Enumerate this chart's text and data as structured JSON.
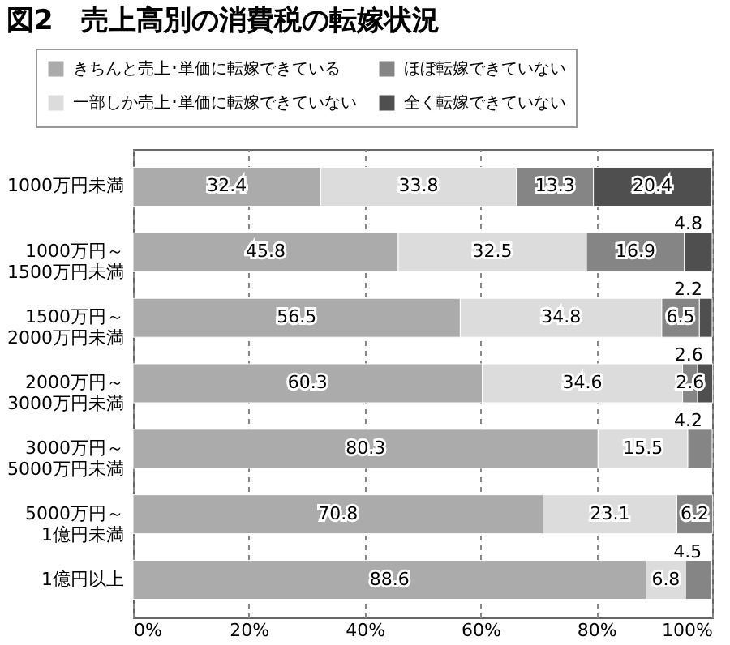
{
  "chart_data": {
    "type": "bar",
    "orientation": "horizontal",
    "stacked": true,
    "title": "図2　売上高別の消費税の転嫁状況",
    "categories": [
      "1000万円未満",
      "1000万円～1500万円未満",
      "1500万円～2000万円未満",
      "2000万円～3000万円未満",
      "3000万円～5000万円未満",
      "5000万円～1億円未満",
      "1億円以上"
    ],
    "series": [
      {
        "name": "きちんと売上･単価に転嫁できている",
        "color": "#ababab",
        "values": [
          32.4,
          45.8,
          56.5,
          60.3,
          80.3,
          70.8,
          88.6
        ]
      },
      {
        "name": "一部しか売上･単価に転嫁できていない",
        "color": "#dcdcdc",
        "values": [
          33.8,
          32.5,
          34.8,
          34.6,
          15.5,
          23.1,
          6.8
        ]
      },
      {
        "name": "ほぼ転嫁できていない",
        "color": "#858585",
        "values": [
          13.3,
          16.9,
          6.5,
          2.6,
          4.2,
          6.2,
          4.5
        ]
      },
      {
        "name": "全く転嫁できていない",
        "color": "#4f4f4f",
        "values": [
          20.4,
          4.8,
          2.2,
          2.6,
          null,
          null,
          null
        ]
      }
    ],
    "xlim": [
      0,
      100
    ],
    "xticks": [
      {
        "value": 0,
        "label": "0%"
      },
      {
        "value": 20,
        "label": "20%"
      },
      {
        "value": 40,
        "label": "40%"
      },
      {
        "value": 60,
        "label": "60%"
      },
      {
        "value": 80,
        "label": "80%"
      },
      {
        "value": 100,
        "label": "100%"
      }
    ],
    "grid": "x",
    "legend": "top",
    "data_labels": true
  }
}
